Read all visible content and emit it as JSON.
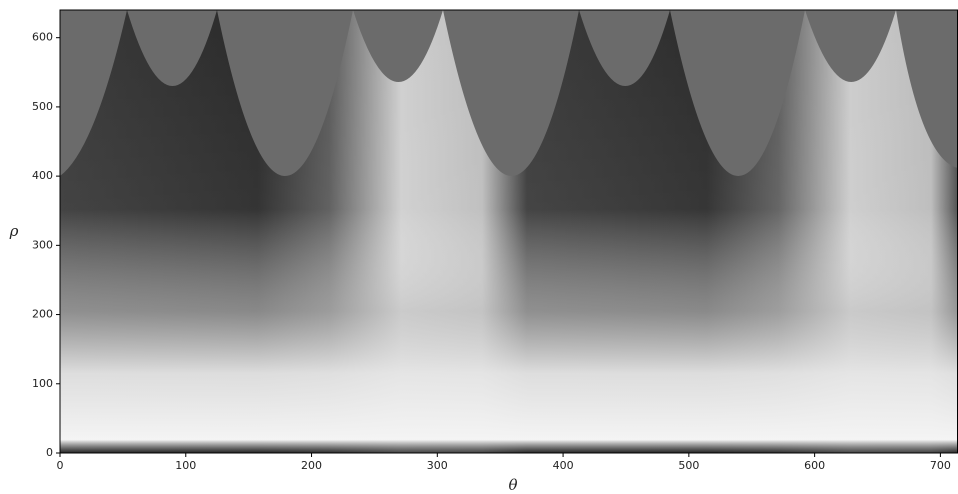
{
  "chart_data": {
    "type": "image",
    "xlabel": "θ",
    "ylabel": "ρ",
    "xlim": [
      0,
      714
    ],
    "ylim": [
      0,
      640
    ],
    "xticks": [
      0,
      100,
      200,
      300,
      400,
      500,
      600,
      700
    ],
    "yticks": [
      0,
      100,
      200,
      300,
      400,
      500,
      600
    ]
  }
}
